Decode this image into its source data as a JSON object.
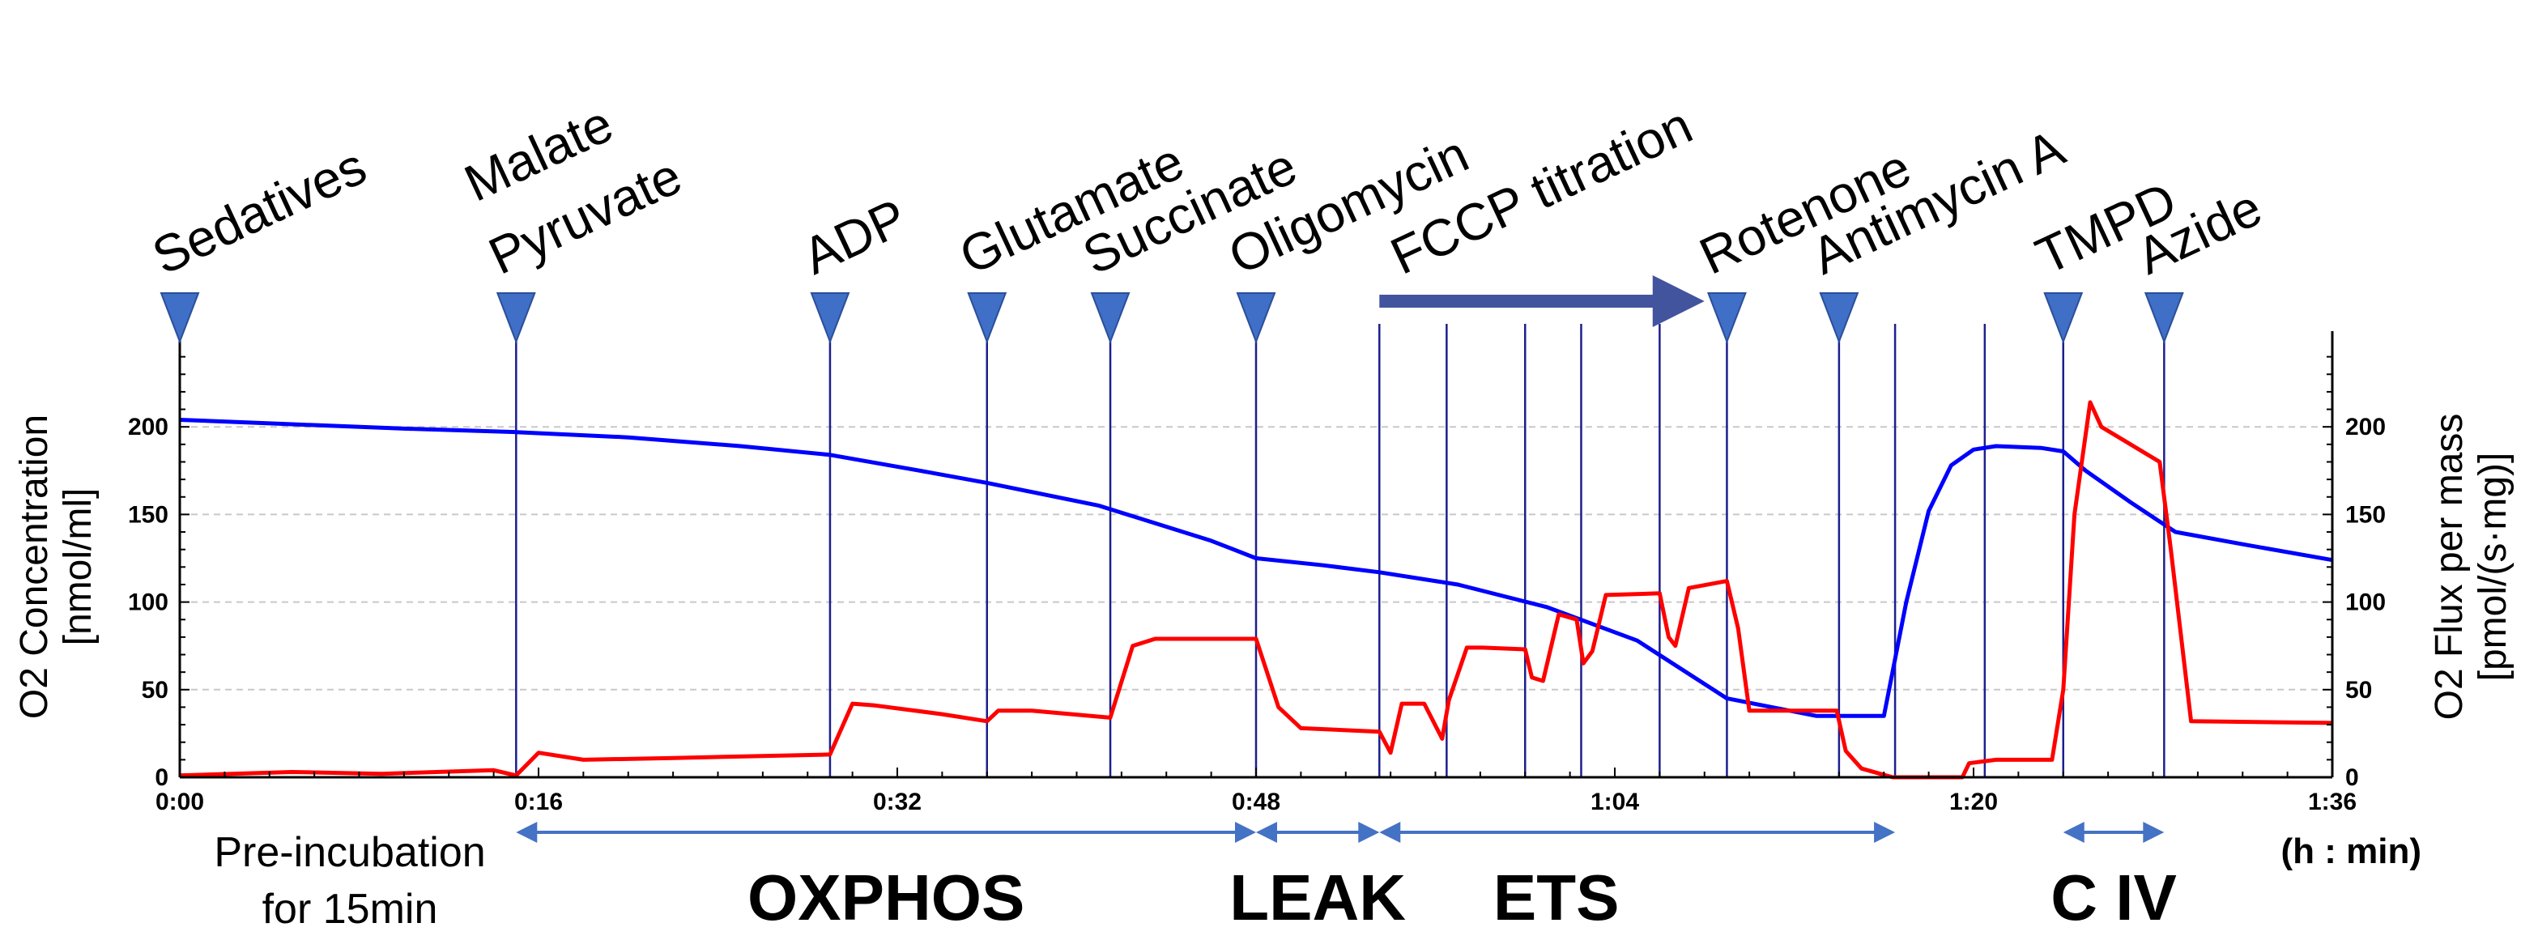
{
  "chart_data": {
    "type": "line",
    "xlabel": "(h : min)",
    "ylabel_left": [
      "O2 Concentration",
      "[nmol/ml]"
    ],
    "ylabel_right": [
      "O2 Flux per mass",
      "[pmol/(s·mg)]"
    ],
    "xlim_min": [
      0,
      96
    ],
    "ylim_left": [
      0,
      250
    ],
    "ylim_right": [
      0,
      250
    ],
    "x_ticks": [
      {
        "min": 0,
        "label": "0:00"
      },
      {
        "min": 16,
        "label": "0:16"
      },
      {
        "min": 32,
        "label": "0:32"
      },
      {
        "min": 48,
        "label": "0:48"
      },
      {
        "min": 64,
        "label": "1:04"
      },
      {
        "min": 80,
        "label": "1:20"
      },
      {
        "min": 96,
        "label": "1:36"
      }
    ],
    "y_ticks_left": [
      0,
      50,
      100,
      150,
      200
    ],
    "y_ticks_right": [
      0,
      50,
      100,
      150,
      200
    ],
    "grid_y": true,
    "events": [
      {
        "label": "Sedatives",
        "min": 0
      },
      {
        "label": "Malate",
        "label2": "Pyruvate",
        "min": 15
      },
      {
        "label": "ADP",
        "min": 29
      },
      {
        "label": "Glutamate",
        "min": 36
      },
      {
        "label": "Succinate",
        "min": 41.5
      },
      {
        "label": "Oligomycin",
        "min": 48
      },
      {
        "label": "Rotenone",
        "min": 69
      },
      {
        "label": "Antimycin A",
        "min": 74
      },
      {
        "label": "TMPD",
        "min": 84
      },
      {
        "label": "Azide",
        "min": 88.5
      }
    ],
    "titration": {
      "label": "FCCP titration",
      "from_min": 53.5,
      "to_min": 68
    },
    "vertical_lines_min": [
      15,
      29,
      36,
      41.5,
      48,
      53.5,
      56.5,
      60,
      62.5,
      66,
      69,
      74,
      76.5,
      80.5,
      84,
      88.5
    ],
    "series": [
      {
        "name": "O2 Concentration",
        "color": "#0000ff",
        "axis": "left",
        "x": [
          0,
          4,
          10,
          15,
          20,
          25,
          29,
          33,
          36,
          41,
          46,
          48,
          51,
          53.5,
          57,
          61,
          65,
          69,
          71,
          73,
          74,
          76,
          77,
          78,
          79,
          80,
          81,
          83,
          84,
          85,
          87,
          89,
          92,
          96
        ],
        "y": [
          204,
          202,
          199,
          197,
          194,
          189,
          184,
          175,
          168,
          155,
          135,
          125,
          121,
          117,
          110,
          97,
          78,
          45,
          40,
          35,
          35,
          35,
          100,
          152,
          178,
          187,
          189,
          188,
          186,
          175,
          157,
          140,
          133,
          124
        ]
      },
      {
        "name": "O2 Flux per mass",
        "color": "#ff0000",
        "axis": "right",
        "x": [
          0,
          5,
          9,
          14,
          15,
          16,
          18,
          22,
          29,
          30,
          31,
          34,
          36,
          36.5,
          38,
          41.5,
          42.5,
          43.5,
          48,
          49,
          50,
          53.5,
          54,
          54.5,
          55.5,
          56.3,
          56.6,
          57.4,
          58.1,
          60,
          60.3,
          60.8,
          61.5,
          62.3,
          62.6,
          63,
          63.6,
          66,
          66.4,
          66.7,
          67.3,
          69,
          69.5,
          70,
          71.5,
          73.9,
          74.3,
          75,
          76.1,
          76.4,
          79.5,
          79.8,
          81,
          83.5,
          84,
          84.5,
          85.2,
          85.7,
          88.3,
          88.8,
          89.7,
          96
        ],
        "y": [
          1,
          3,
          2,
          4,
          1,
          14,
          10,
          11,
          13,
          42,
          41,
          36,
          32,
          38,
          38,
          34,
          75,
          79,
          79,
          40,
          28,
          26,
          14,
          42,
          42,
          22,
          44,
          74,
          74,
          73,
          57,
          55,
          93,
          90,
          65,
          72,
          104,
          105,
          80,
          75,
          108,
          112,
          85,
          38,
          38,
          38,
          15,
          5,
          1,
          0,
          0,
          8,
          10,
          10,
          50,
          150,
          214,
          200,
          180,
          130,
          32,
          31
        ]
      }
    ],
    "phases": [
      {
        "label": "OXPHOS",
        "from_min": 15,
        "to_min": 48
      },
      {
        "label": "LEAK",
        "from_min": 48,
        "to_min": 53.5
      },
      {
        "label": "ETS",
        "from_min": 53.5,
        "to_min": 76.5
      },
      {
        "label": "C IV",
        "from_min": 84,
        "to_min": 88.5
      }
    ],
    "preincubation_note": [
      "Pre-incubation",
      "for 15min"
    ]
  }
}
